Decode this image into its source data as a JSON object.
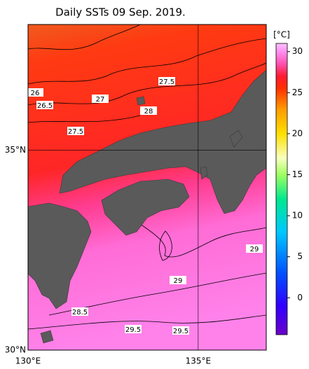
{
  "chart_data": {
    "type": "map",
    "title": "Daily SSTs 09 Sep. 2019.",
    "xlim": [
      130,
      137
    ],
    "ylim": [
      30,
      38.15
    ],
    "xticks": [
      {
        "value": 130,
        "label": "130°E"
      },
      {
        "value": 135,
        "label": "135°E"
      }
    ],
    "yticks": [
      {
        "value": 30,
        "label": "30°N"
      },
      {
        "value": 35,
        "label": "35°N"
      }
    ],
    "grid": true,
    "colorbar": {
      "label": "[°C]",
      "clim": [
        -4.5,
        31
      ],
      "ticks": [
        0,
        5,
        10,
        15,
        20,
        25,
        30
      ]
    },
    "contour_labels": [
      26,
      26.5,
      27,
      27.5,
      28,
      27.5,
      29,
      29,
      28.5,
      29.5,
      29.5
    ]
  }
}
